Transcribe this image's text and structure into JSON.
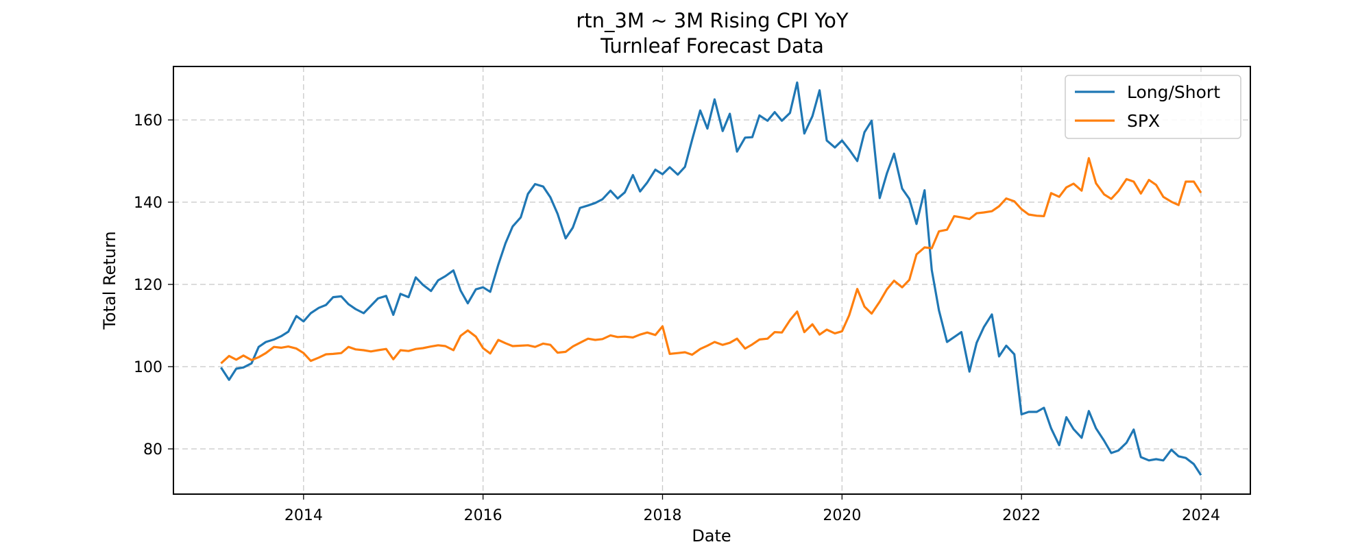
{
  "chart_data": {
    "type": "line",
    "title": "rtn_3M ~ 3M Rising CPI YoY",
    "subtitle": "Turnleaf Forecast Data",
    "xlabel": "Date",
    "ylabel": "Total Return",
    "xlim": [
      2012.55,
      2024.55
    ],
    "ylim": [
      69.0,
      173.0
    ],
    "x_ticks": [
      2014,
      2016,
      2018,
      2020,
      2022,
      2024
    ],
    "y_ticks": [
      80,
      100,
      120,
      140,
      160
    ],
    "grid": true,
    "legend_position": "upper-right",
    "x": [
      2013.08,
      2013.17,
      2013.25,
      2013.33,
      2013.42,
      2013.5,
      2013.58,
      2013.67,
      2013.75,
      2013.83,
      2013.92,
      2014.0,
      2014.08,
      2014.17,
      2014.25,
      2014.33,
      2014.42,
      2014.5,
      2014.58,
      2014.67,
      2014.75,
      2014.83,
      2014.92,
      2015.0,
      2015.08,
      2015.17,
      2015.25,
      2015.33,
      2015.42,
      2015.5,
      2015.58,
      2015.67,
      2015.75,
      2015.83,
      2015.92,
      2016.0,
      2016.08,
      2016.17,
      2016.25,
      2016.33,
      2016.42,
      2016.5,
      2016.58,
      2016.67,
      2016.75,
      2016.83,
      2016.92,
      2017.0,
      2017.08,
      2017.17,
      2017.25,
      2017.33,
      2017.42,
      2017.5,
      2017.58,
      2017.67,
      2017.75,
      2017.83,
      2017.92,
      2018.0,
      2018.08,
      2018.17,
      2018.25,
      2018.33,
      2018.42,
      2018.5,
      2018.58,
      2018.67,
      2018.75,
      2018.83,
      2018.92,
      2019.0,
      2019.08,
      2019.17,
      2019.25,
      2019.33,
      2019.42,
      2019.5,
      2019.58,
      2019.67,
      2019.75,
      2019.83,
      2019.92,
      2020.0,
      2020.08,
      2020.17,
      2020.25,
      2020.33,
      2020.42,
      2020.5,
      2020.58,
      2020.67,
      2020.75,
      2020.83,
      2020.92,
      2021.0,
      2021.08,
      2021.17,
      2021.25,
      2021.33,
      2021.42,
      2021.5,
      2021.58,
      2021.67,
      2021.75,
      2021.83,
      2021.92,
      2022.0,
      2022.08,
      2022.17,
      2022.25,
      2022.33,
      2022.42,
      2022.5,
      2022.58,
      2022.67,
      2022.75,
      2022.83,
      2022.92,
      2023.0,
      2023.08,
      2023.17,
      2023.25,
      2023.33,
      2023.42,
      2023.5,
      2023.58,
      2023.67,
      2023.75,
      2023.83,
      2023.92,
      2024.0
    ],
    "series": [
      {
        "name": "Long/Short",
        "color": "#1f77b4",
        "values": [
          99.8,
          96.8,
          99.5,
          99.8,
          100.8,
          104.8,
          106.0,
          106.6,
          107.4,
          108.5,
          112.3,
          111.0,
          113.0,
          114.3,
          115.0,
          116.9,
          117.1,
          115.2,
          114.0,
          113.0,
          114.8,
          116.6,
          117.2,
          112.6,
          117.7,
          116.9,
          121.7,
          119.9,
          118.4,
          121.0,
          122.0,
          123.4,
          118.5,
          115.4,
          118.8,
          119.3,
          118.2,
          124.8,
          130.0,
          134.1,
          136.3,
          142.0,
          144.4,
          143.8,
          141.2,
          137.2,
          131.2,
          133.8,
          138.6,
          139.2,
          139.8,
          140.7,
          142.8,
          140.9,
          142.4,
          146.6,
          142.6,
          144.8,
          147.9,
          146.8,
          148.5,
          146.7,
          148.6,
          155.2,
          162.3,
          157.9,
          165.0,
          157.3,
          161.5,
          152.3,
          155.7,
          155.8,
          161.1,
          159.8,
          161.9,
          159.8,
          161.7,
          169.1,
          156.7,
          160.9,
          167.2,
          155.0,
          153.3,
          155.0,
          152.8,
          150.0,
          157.0,
          159.8,
          141.0,
          147.0,
          151.8,
          143.3,
          140.8,
          134.7,
          142.9,
          123.5,
          113.7,
          106.0,
          107.2,
          108.4,
          98.8,
          105.8,
          109.6,
          112.7,
          102.5,
          105.1,
          103.0,
          88.4,
          89.0,
          89.0,
          90.0,
          85.0,
          80.9,
          87.7,
          84.8,
          82.7,
          89.2,
          85.0,
          82.0,
          79.0,
          79.6,
          81.5,
          84.7,
          78.0,
          77.2,
          77.5,
          77.2,
          79.8,
          78.2,
          77.8,
          76.3,
          73.6
        ]
      },
      {
        "name": "SPX",
        "color": "#ff7f0e",
        "values": [
          100.8,
          102.6,
          101.7,
          102.7,
          101.6,
          102.3,
          103.3,
          104.8,
          104.6,
          104.9,
          104.4,
          103.3,
          101.4,
          102.2,
          103.0,
          103.1,
          103.3,
          104.8,
          104.2,
          104.0,
          103.7,
          104.0,
          104.3,
          101.8,
          104.0,
          103.8,
          104.3,
          104.5,
          104.9,
          105.2,
          105.0,
          104.0,
          107.5,
          108.8,
          107.3,
          104.5,
          103.2,
          106.5,
          105.7,
          105.0,
          105.1,
          105.2,
          104.8,
          105.6,
          105.3,
          103.4,
          103.6,
          104.9,
          105.8,
          106.8,
          106.5,
          106.7,
          107.6,
          107.2,
          107.3,
          107.1,
          107.8,
          108.3,
          107.7,
          109.8,
          103.1,
          103.3,
          103.5,
          102.9,
          104.3,
          105.1,
          106.0,
          105.3,
          105.8,
          106.8,
          104.4,
          105.4,
          106.6,
          106.8,
          108.4,
          108.3,
          111.3,
          113.4,
          108.4,
          110.3,
          107.8,
          109.0,
          108.1,
          108.6,
          112.5,
          118.9,
          114.6,
          112.9,
          115.8,
          118.8,
          120.9,
          119.3,
          121.1,
          127.3,
          129.0,
          128.8,
          132.9,
          133.3,
          136.6,
          136.3,
          135.9,
          137.3,
          137.5,
          137.8,
          139.0,
          140.9,
          140.2,
          138.3,
          137.0,
          136.7,
          136.6,
          142.2,
          141.3,
          143.6,
          144.5,
          142.8,
          150.7,
          144.6,
          141.9,
          140.8,
          142.7,
          145.6,
          145.0,
          142.1,
          145.4,
          144.2,
          141.3,
          140.1,
          139.3,
          145.0,
          145.0,
          142.3
        ]
      }
    ]
  }
}
